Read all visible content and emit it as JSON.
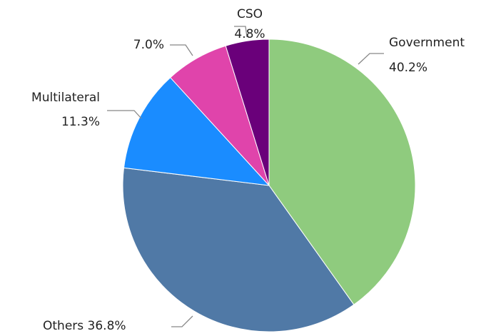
{
  "chart_data": {
    "type": "pie",
    "categories": [
      "Government",
      "Others",
      "Multilateral",
      null,
      "CSO"
    ],
    "values": [
      40.2,
      36.8,
      11.3,
      7.0,
      4.8
    ],
    "value_labels": [
      "40.2%",
      "36.8%",
      "11.3%",
      "7.0%",
      "4.8%"
    ],
    "colors": [
      "#8fcb7e",
      "#5079a6",
      "#1a8cff",
      "#e044ab",
      "#6a007a"
    ]
  }
}
